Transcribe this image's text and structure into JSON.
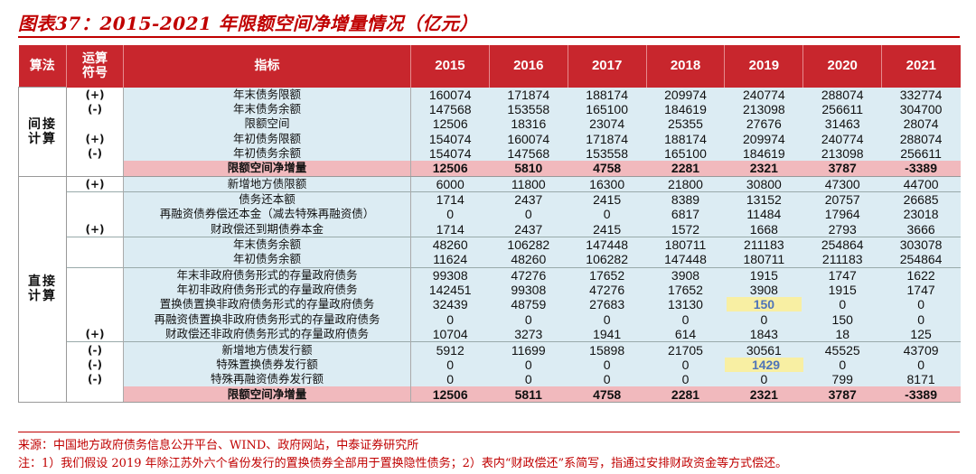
{
  "title": "图表37：2015-2021 年限额空间净增量情况（亿元）",
  "header": {
    "alg": "算法",
    "op": "运算\n符号",
    "ind": "指标",
    "years": [
      "2015",
      "2016",
      "2017",
      "2018",
      "2019",
      "2020",
      "2021"
    ]
  },
  "groups": {
    "indirect": "间接\n计算",
    "direct": "直接\n计算"
  },
  "rows": [
    {
      "op": "(+)",
      "ind": "年末债务限额",
      "v": [
        "160074",
        "171874",
        "188174",
        "209974",
        "240774",
        "288074",
        "332774"
      ]
    },
    {
      "op": "(-)",
      "ind": "年末债务余额",
      "v": [
        "147568",
        "153558",
        "165100",
        "184619",
        "213098",
        "256611",
        "304700"
      ]
    },
    {
      "op": "",
      "ind": "限额空间",
      "v": [
        "12506",
        "18316",
        "23074",
        "25355",
        "27676",
        "31463",
        "28074"
      ]
    },
    {
      "op": "(+)",
      "ind": "年初债务限额",
      "v": [
        "154074",
        "160074",
        "171874",
        "188174",
        "209974",
        "240774",
        "288074"
      ]
    },
    {
      "op": "(-)",
      "ind": "年初债务余额",
      "v": [
        "154074",
        "147568",
        "153558",
        "165100",
        "184619",
        "213098",
        "256611"
      ]
    },
    {
      "op": "",
      "ind": "限额空间净增量",
      "v": [
        "12506",
        "5810",
        "4758",
        "2281",
        "2321",
        "3787",
        "-3389"
      ]
    },
    {
      "op": "(+)",
      "ind": "新增地方债限额",
      "v": [
        "6000",
        "11800",
        "16300",
        "21800",
        "30800",
        "47300",
        "44700"
      ]
    },
    {
      "op": "",
      "ind": "债务还本额",
      "v": [
        "1714",
        "2437",
        "2415",
        "8389",
        "13152",
        "20757",
        "26685"
      ]
    },
    {
      "op": "",
      "ind": "再融资债券偿还本金（减去特殊再融资债）",
      "v": [
        "0",
        "0",
        "0",
        "6817",
        "11484",
        "17964",
        "23018"
      ]
    },
    {
      "op": "(+)",
      "ind": "财政偿还到期债券本金",
      "v": [
        "1714",
        "2437",
        "2415",
        "1572",
        "1668",
        "2793",
        "3666"
      ]
    },
    {
      "op": "",
      "ind": "年末债务余额",
      "v": [
        "48260",
        "106282",
        "147448",
        "180711",
        "211183",
        "254864",
        "303078"
      ]
    },
    {
      "op": "",
      "ind": "年初债务余额",
      "v": [
        "11624",
        "48260",
        "106282",
        "147448",
        "180711",
        "211183",
        "254864"
      ]
    },
    {
      "op": "",
      "ind": "年末非政府债务形式的存量政府债务",
      "v": [
        "99308",
        "47276",
        "17652",
        "3908",
        "1915",
        "1747",
        "1622"
      ]
    },
    {
      "op": "",
      "ind": "年初非政府债务形式的存量政府债务",
      "v": [
        "142451",
        "99308",
        "47276",
        "17652",
        "3908",
        "1915",
        "1747"
      ]
    },
    {
      "op": "",
      "ind": "置换债置换非政府债务形式的存量政府债务",
      "v": [
        "32439",
        "48759",
        "27683",
        "13130",
        "150",
        "0",
        "0"
      ]
    },
    {
      "op": "",
      "ind": "再融资债置换非政府债务形式的存量政府债务",
      "v": [
        "0",
        "0",
        "0",
        "0",
        "0",
        "150",
        "0"
      ]
    },
    {
      "op": "(+)",
      "ind": "财政偿还非政府债务形式的存量政府债务",
      "v": [
        "10704",
        "3273",
        "1941",
        "614",
        "1843",
        "18",
        "125"
      ]
    },
    {
      "op": "(-)",
      "ind": "新增地方债发行额",
      "v": [
        "5912",
        "11699",
        "15898",
        "21705",
        "30561",
        "45525",
        "43709"
      ]
    },
    {
      "op": "(-)",
      "ind": "特殊置换债券发行额",
      "v": [
        "0",
        "0",
        "0",
        "0",
        "1429",
        "0",
        "0"
      ]
    },
    {
      "op": "(-)",
      "ind": "特殊再融资债券发行额",
      "v": [
        "0",
        "0",
        "0",
        "0",
        "0",
        "799",
        "8171"
      ]
    },
    {
      "op": "",
      "ind": "限额空间净增量",
      "v": [
        "12506",
        "5811",
        "4758",
        "2281",
        "2321",
        "3787",
        "-3389"
      ]
    }
  ],
  "highlight_color": "#f8efa3",
  "header_color": "#c8262d",
  "source": "来源：中国地方政府债务信息公开平台、WIND、政府网站，中泰证券研究所",
  "note": "注：1）我们假设 2019 年除江苏外六个省份发行的置换债券全部用于置换隐性债务；2）表内“财政偿还”系简写，指通过安排财政资金等方式偿还。"
}
